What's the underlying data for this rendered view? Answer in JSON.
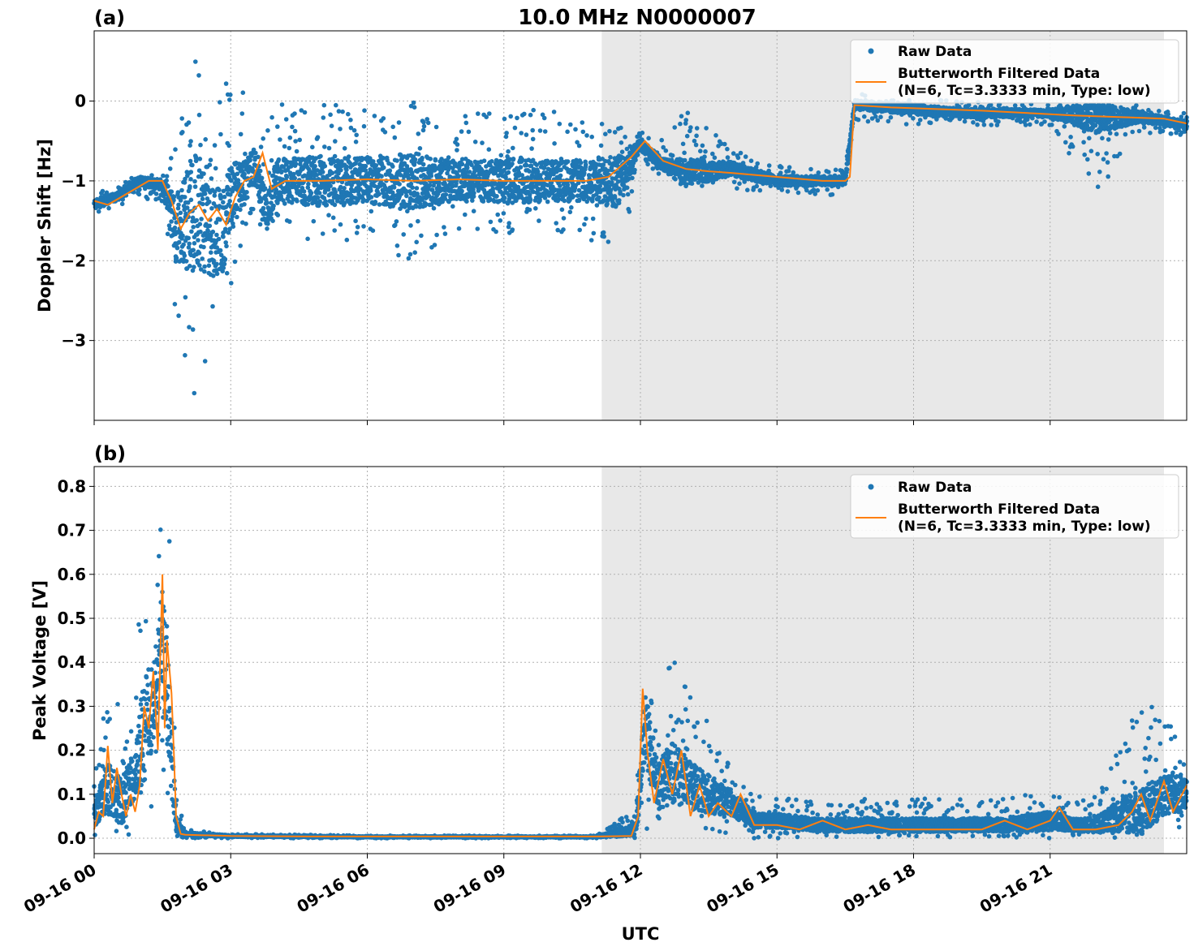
{
  "figure": {
    "title": "10.0 MHz N0000007",
    "xlabel": "UTC"
  },
  "colors": {
    "raw": "#1f77b4",
    "filtered": "#ff7f0e",
    "night_shade": "#e8e8e8",
    "grid": "#b0b0b0"
  },
  "x_axis": {
    "range_hours": [
      0,
      24
    ],
    "ticks_hours": [
      0,
      3,
      6,
      9,
      12,
      15,
      18,
      21
    ],
    "tick_labels": [
      "09-16 00",
      "09-16 03",
      "09-16 06",
      "09-16 09",
      "09-16 12",
      "09-16 15",
      "09-16 18",
      "09-16 21"
    ],
    "shaded_interval_hours": [
      11.15,
      23.5
    ]
  },
  "legend": {
    "raw_label": "Raw Data",
    "filtered_label_line1": "Butterworth Filtered Data",
    "filtered_label_line2": "(N=6, Tc=3.3333 min, Type: low)"
  },
  "chart_data": [
    {
      "type": "scatter",
      "panel_label": "(a)",
      "ylabel": "Doppler Shift [Hz]",
      "ylim": [
        -4.0,
        0.88
      ],
      "yticks": [
        0,
        -1,
        -2,
        -3
      ],
      "ytick_labels": [
        "0",
        "−1",
        "−2",
        "−3"
      ],
      "grid": true,
      "legend_position": "top-right",
      "series": [
        {
          "name": "Raw Data",
          "kind": "points",
          "x": [
            0.0,
            0.5,
            1.0,
            1.5,
            1.8,
            2.2,
            2.5,
            2.8,
            3.0,
            3.3,
            3.5,
            3.8,
            4.0,
            5.0,
            6.0,
            7.0,
            8.0,
            9.0,
            10.0,
            11.0,
            11.5,
            12.0,
            12.5,
            13.0,
            14.0,
            15.0,
            16.0,
            16.5,
            16.7,
            18.0,
            19.0,
            20.0,
            21.0,
            22.0,
            23.0,
            24.0
          ],
          "y": [
            -1.3,
            -1.2,
            -1.0,
            -1.05,
            -1.6,
            -1.4,
            -1.5,
            -1.7,
            -1.2,
            -1.0,
            -0.8,
            -1.4,
            -1.0,
            -1.0,
            -1.0,
            -1.0,
            -1.0,
            -1.0,
            -1.0,
            -1.0,
            -1.0,
            -0.55,
            -0.8,
            -0.9,
            -0.85,
            -1.0,
            -1.0,
            -1.0,
            -0.05,
            -0.1,
            -0.15,
            -0.15,
            -0.15,
            -0.2,
            -0.2,
            -0.3
          ],
          "spread_min": [
            -1.45,
            -1.35,
            -1.2,
            -1.3,
            -2.9,
            -3.8,
            -3.2,
            -2.5,
            -2.5,
            -1.6,
            -1.5,
            -1.6,
            -1.6,
            -1.8,
            -1.8,
            -2.0,
            -1.6,
            -1.7,
            -1.6,
            -1.8,
            -2.1,
            -0.75,
            -0.95,
            -1.1,
            -1.1,
            -1.15,
            -1.2,
            -1.15,
            -0.25,
            -0.3,
            -0.3,
            -0.3,
            -0.3,
            -1.2,
            -0.4,
            -0.45
          ],
          "spread_max": [
            -1.1,
            -1.05,
            -0.9,
            -0.9,
            -0.4,
            0.5,
            0.65,
            0.5,
            0.1,
            0.15,
            -0.2,
            -0.3,
            0.0,
            0.0,
            -0.1,
            0.0,
            -0.2,
            -0.1,
            -0.1,
            -0.3,
            -0.2,
            -0.35,
            -0.5,
            -0.1,
            -0.6,
            -0.8,
            -0.85,
            -0.85,
            0.1,
            0.05,
            0.0,
            0.0,
            -0.05,
            -0.05,
            -0.05,
            -0.15
          ]
        },
        {
          "name": "Butterworth Filtered Data\n(N=6, Tc=3.3333 min, Type: low)",
          "kind": "line",
          "x": [
            0.0,
            0.3,
            0.6,
            0.9,
            1.2,
            1.5,
            1.7,
            1.9,
            2.1,
            2.3,
            2.5,
            2.7,
            2.9,
            3.1,
            3.3,
            3.5,
            3.7,
            3.9,
            4.2,
            5.0,
            6.0,
            7.0,
            8.0,
            9.0,
            10.0,
            10.8,
            11.3,
            11.8,
            12.1,
            12.5,
            13.0,
            13.5,
            14.0,
            15.0,
            16.0,
            16.5,
            16.6,
            16.7,
            17.5,
            18.5,
            19.5,
            20.5,
            21.5,
            22.5,
            23.5,
            24.0
          ],
          "y": [
            -1.25,
            -1.3,
            -1.2,
            -1.1,
            -1.0,
            -1.0,
            -1.25,
            -1.6,
            -1.4,
            -1.3,
            -1.5,
            -1.35,
            -1.55,
            -1.2,
            -1.0,
            -0.95,
            -0.65,
            -1.1,
            -1.0,
            -1.0,
            -0.98,
            -1.0,
            -0.98,
            -1.0,
            -1.0,
            -1.0,
            -0.95,
            -0.7,
            -0.5,
            -0.75,
            -0.85,
            -0.88,
            -0.9,
            -0.95,
            -1.0,
            -1.0,
            -0.95,
            -0.05,
            -0.08,
            -0.1,
            -0.12,
            -0.15,
            -0.18,
            -0.2,
            -0.22,
            -0.28
          ]
        }
      ]
    },
    {
      "type": "scatter",
      "panel_label": "(b)",
      "ylabel": "Peak Voltage [V]",
      "ylim": [
        -0.035,
        0.845
      ],
      "yticks": [
        0.0,
        0.1,
        0.2,
        0.3,
        0.4,
        0.5,
        0.6,
        0.7,
        0.8
      ],
      "ytick_labels": [
        "0.0",
        "0.1",
        "0.2",
        "0.3",
        "0.4",
        "0.5",
        "0.6",
        "0.7",
        "0.8"
      ],
      "grid": true,
      "legend_position": "top-right",
      "series": [
        {
          "name": "Raw Data",
          "kind": "points",
          "x": [
            0.0,
            0.3,
            0.6,
            0.9,
            1.1,
            1.3,
            1.5,
            1.7,
            1.8,
            2.0,
            3.0,
            6.0,
            9.0,
            11.0,
            11.9,
            12.1,
            12.4,
            12.7,
            13.0,
            13.5,
            14.0,
            14.5,
            15.0,
            16.0,
            17.0,
            18.0,
            19.0,
            20.0,
            21.0,
            21.5,
            22.0,
            22.5,
            23.0,
            23.5,
            24.0
          ],
          "y": [
            0.05,
            0.12,
            0.08,
            0.15,
            0.25,
            0.3,
            0.45,
            0.2,
            0.03,
            0.01,
            0.005,
            0.003,
            0.003,
            0.003,
            0.02,
            0.25,
            0.12,
            0.15,
            0.13,
            0.1,
            0.08,
            0.04,
            0.04,
            0.03,
            0.03,
            0.03,
            0.03,
            0.03,
            0.04,
            0.03,
            0.03,
            0.05,
            0.06,
            0.1,
            0.1
          ],
          "spread_min": [
            0.0,
            0.0,
            0.0,
            0.0,
            0.0,
            0.05,
            0.1,
            0.05,
            0.0,
            0.0,
            0.0,
            0.0,
            0.0,
            0.0,
            0.0,
            0.0,
            0.02,
            0.02,
            0.02,
            0.02,
            0.01,
            0.0,
            0.0,
            0.0,
            0.0,
            0.0,
            0.0,
            0.0,
            0.0,
            0.0,
            0.0,
            0.0,
            0.01,
            0.02,
            0.02
          ],
          "spread_max": [
            0.13,
            0.34,
            0.3,
            0.33,
            0.75,
            0.58,
            0.81,
            0.67,
            0.1,
            0.02,
            0.01,
            0.006,
            0.006,
            0.006,
            0.08,
            0.5,
            0.33,
            0.42,
            0.35,
            0.27,
            0.18,
            0.1,
            0.09,
            0.09,
            0.09,
            0.09,
            0.09,
            0.09,
            0.12,
            0.08,
            0.1,
            0.2,
            0.32,
            0.28,
            0.25
          ]
        },
        {
          "name": "Butterworth Filtered Data\n(N=6, Tc=3.3333 min, Type: low)",
          "kind": "line",
          "x": [
            0.0,
            0.1,
            0.2,
            0.3,
            0.4,
            0.5,
            0.6,
            0.7,
            0.8,
            0.9,
            1.0,
            1.1,
            1.2,
            1.3,
            1.4,
            1.5,
            1.55,
            1.6,
            1.7,
            1.75,
            1.8,
            1.9,
            2.0,
            3.0,
            5.0,
            7.0,
            9.0,
            11.0,
            11.8,
            11.95,
            12.05,
            12.15,
            12.3,
            12.5,
            12.7,
            12.9,
            13.1,
            13.3,
            13.5,
            13.7,
            14.0,
            14.2,
            14.5,
            15.0,
            15.5,
            16.0,
            16.5,
            17.0,
            17.5,
            18.0,
            18.5,
            19.0,
            19.5,
            20.0,
            20.5,
            21.0,
            21.2,
            21.5,
            22.0,
            22.5,
            22.8,
            23.0,
            23.2,
            23.5,
            23.7,
            24.0
          ],
          "y": [
            0.02,
            0.06,
            0.05,
            0.21,
            0.08,
            0.16,
            0.1,
            0.05,
            0.1,
            0.06,
            0.12,
            0.3,
            0.25,
            0.38,
            0.2,
            0.6,
            0.25,
            0.45,
            0.33,
            0.2,
            0.05,
            0.01,
            0.008,
            0.005,
            0.004,
            0.004,
            0.004,
            0.004,
            0.005,
            0.05,
            0.34,
            0.2,
            0.08,
            0.18,
            0.1,
            0.2,
            0.05,
            0.12,
            0.05,
            0.08,
            0.05,
            0.1,
            0.03,
            0.03,
            0.02,
            0.04,
            0.02,
            0.03,
            0.02,
            0.02,
            0.02,
            0.02,
            0.02,
            0.04,
            0.02,
            0.04,
            0.07,
            0.02,
            0.02,
            0.03,
            0.06,
            0.1,
            0.04,
            0.13,
            0.06,
            0.12
          ]
        }
      ]
    }
  ]
}
